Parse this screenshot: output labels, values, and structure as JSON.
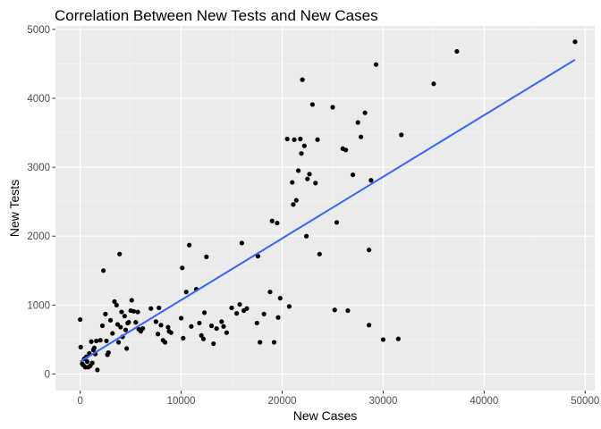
{
  "chart_data": {
    "type": "scatter",
    "title": "Correlation Between New Tests and New Cases",
    "xlabel": "New Cases",
    "ylabel": "New Tests",
    "xlim": [
      -2450,
      50950
    ],
    "ylim": [
      -240,
      5050
    ],
    "x_ticks": [
      0,
      10000,
      20000,
      30000,
      40000,
      50000
    ],
    "y_ticks": [
      0,
      1000,
      2000,
      3000,
      4000,
      5000
    ],
    "x_tick_labels": [
      "0",
      "10000",
      "20000",
      "30000",
      "40000",
      "50000"
    ],
    "y_tick_labels": [
      "0",
      "1000",
      "2000",
      "3000",
      "4000",
      "5000"
    ],
    "grid": true,
    "legend": "none",
    "colors": {
      "panel_background": "#ebebeb",
      "grid_major": "#ffffff",
      "grid_minor": "#f5f5f5",
      "points": "#000000",
      "trend_line": "#3366ff"
    },
    "trend_line": {
      "type": "linear",
      "x": [
        0,
        49000
      ],
      "y": [
        180,
        4560
      ]
    },
    "series": [
      {
        "points": [
          [
            0,
            790
          ],
          [
            50,
            390
          ],
          [
            200,
            150
          ],
          [
            300,
            130
          ],
          [
            400,
            220
          ],
          [
            500,
            100
          ],
          [
            600,
            250
          ],
          [
            700,
            180
          ],
          [
            800,
            100
          ],
          [
            900,
            300
          ],
          [
            1000,
            120
          ],
          [
            1100,
            470
          ],
          [
            1200,
            160
          ],
          [
            1300,
            350
          ],
          [
            1400,
            380
          ],
          [
            1500,
            290
          ],
          [
            1600,
            480
          ],
          [
            1700,
            60
          ],
          [
            2000,
            490
          ],
          [
            2200,
            700
          ],
          [
            2300,
            1500
          ],
          [
            2500,
            870
          ],
          [
            2600,
            480
          ],
          [
            2700,
            280
          ],
          [
            2800,
            310
          ],
          [
            3000,
            780
          ],
          [
            3200,
            590
          ],
          [
            3400,
            1050
          ],
          [
            3600,
            1000
          ],
          [
            3700,
            720
          ],
          [
            3800,
            460
          ],
          [
            3900,
            1740
          ],
          [
            4000,
            680
          ],
          [
            4100,
            900
          ],
          [
            4200,
            540
          ],
          [
            4400,
            840
          ],
          [
            4500,
            640
          ],
          [
            4600,
            370
          ],
          [
            4700,
            740
          ],
          [
            4800,
            750
          ],
          [
            5000,
            920
          ],
          [
            5100,
            1070
          ],
          [
            5300,
            910
          ],
          [
            5500,
            750
          ],
          [
            5700,
            900
          ],
          [
            5800,
            650
          ],
          [
            6000,
            620
          ],
          [
            6200,
            660
          ],
          [
            7000,
            950
          ],
          [
            7500,
            760
          ],
          [
            7700,
            580
          ],
          [
            7800,
            960
          ],
          [
            8000,
            710
          ],
          [
            8200,
            490
          ],
          [
            8400,
            460
          ],
          [
            8700,
            680
          ],
          [
            8800,
            620
          ],
          [
            9000,
            600
          ],
          [
            10000,
            810
          ],
          [
            10100,
            1540
          ],
          [
            10200,
            520
          ],
          [
            10500,
            1190
          ],
          [
            10800,
            1870
          ],
          [
            11000,
            690
          ],
          [
            11500,
            1230
          ],
          [
            11800,
            740
          ],
          [
            12000,
            560
          ],
          [
            12200,
            510
          ],
          [
            12300,
            890
          ],
          [
            12500,
            1700
          ],
          [
            13000,
            700
          ],
          [
            13200,
            440
          ],
          [
            13500,
            660
          ],
          [
            14000,
            760
          ],
          [
            14200,
            690
          ],
          [
            14500,
            600
          ],
          [
            15000,
            960
          ],
          [
            15500,
            880
          ],
          [
            15800,
            1010
          ],
          [
            16000,
            1900
          ],
          [
            16200,
            920
          ],
          [
            16500,
            950
          ],
          [
            17500,
            740
          ],
          [
            17600,
            1710
          ],
          [
            17800,
            460
          ],
          [
            18200,
            870
          ],
          [
            18800,
            1190
          ],
          [
            19000,
            2220
          ],
          [
            19200,
            460
          ],
          [
            19500,
            2190
          ],
          [
            19600,
            820
          ],
          [
            19800,
            1100
          ],
          [
            20500,
            3410
          ],
          [
            20700,
            980
          ],
          [
            21000,
            2780
          ],
          [
            21100,
            2460
          ],
          [
            21200,
            3400
          ],
          [
            21400,
            2520
          ],
          [
            21600,
            2950
          ],
          [
            21800,
            3410
          ],
          [
            21900,
            3200
          ],
          [
            22000,
            4270
          ],
          [
            22200,
            3310
          ],
          [
            22400,
            2000
          ],
          [
            22500,
            2830
          ],
          [
            22700,
            2900
          ],
          [
            23000,
            3910
          ],
          [
            23300,
            2770
          ],
          [
            23500,
            3400
          ],
          [
            23700,
            1740
          ],
          [
            25000,
            3870
          ],
          [
            25200,
            930
          ],
          [
            25400,
            2200
          ],
          [
            26000,
            3270
          ],
          [
            26300,
            3250
          ],
          [
            26500,
            920
          ],
          [
            27000,
            2890
          ],
          [
            27500,
            3650
          ],
          [
            27800,
            3440
          ],
          [
            28200,
            3790
          ],
          [
            28600,
            1800
          ],
          [
            28600,
            710
          ],
          [
            28800,
            2810
          ],
          [
            29300,
            4490
          ],
          [
            30000,
            500
          ],
          [
            31500,
            510
          ],
          [
            31800,
            3470
          ],
          [
            35000,
            4210
          ],
          [
            37300,
            4680
          ],
          [
            49000,
            4820
          ]
        ]
      }
    ]
  }
}
